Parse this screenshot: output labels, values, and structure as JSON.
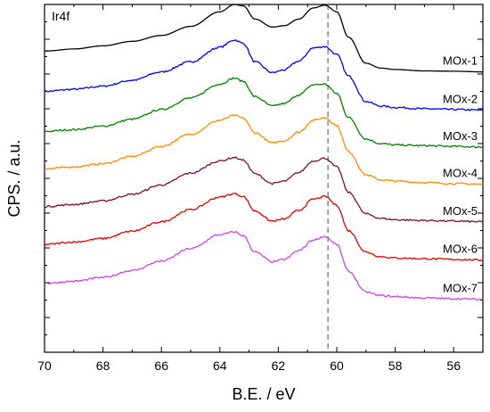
{
  "chart_data": {
    "type": "line",
    "title": "",
    "annotation": "Ir4f",
    "xlabel": "B.E. / eV",
    "ylabel": "CPS. / a.u.",
    "xlim": [
      70,
      55
    ],
    "x_reversed": true,
    "ylim": [
      0,
      100
    ],
    "y_tick_labels": false,
    "x_ticks": [
      70,
      68,
      66,
      64,
      62,
      60,
      58,
      56
    ],
    "reference_line": {
      "x": 60.3,
      "style": "dashed",
      "color": "#888888"
    },
    "grid": false,
    "legend": "inline-right",
    "x": [
      70,
      69,
      68,
      67,
      66,
      65,
      64,
      63.5,
      63.2,
      62.8,
      62.2,
      61.8,
      61.3,
      60.8,
      60.4,
      60.0,
      59.6,
      59.0,
      58.5,
      58,
      57,
      56,
      55
    ],
    "series": [
      {
        "name": "MOx-1",
        "color": "#000000",
        "values": [
          86.6,
          87.2,
          88.1,
          89.4,
          91.1,
          93.7,
          97.9,
          100.0,
          99.6,
          95.8,
          93.5,
          93.9,
          95.8,
          99.0,
          99.8,
          97.9,
          90.6,
          83.1,
          81.7,
          81.3,
          80.9,
          80.8,
          80.6
        ]
      },
      {
        "name": "MOx-2",
        "color": "#0000ee",
        "values": [
          75.0,
          75.6,
          76.5,
          78.2,
          80.6,
          83.5,
          87.7,
          89.8,
          88.8,
          83.5,
          80.4,
          81.2,
          83.7,
          87.5,
          87.9,
          85.6,
          79.4,
          72.1,
          70.8,
          70.4,
          70.0,
          69.8,
          69.6
        ]
      },
      {
        "name": "MOx-3",
        "color": "#008000",
        "values": [
          63.5,
          64.0,
          65.0,
          67.0,
          69.8,
          73.1,
          77.1,
          78.8,
          77.9,
          73.5,
          70.8,
          71.5,
          74.0,
          76.9,
          77.1,
          74.4,
          67.5,
          61.3,
          60.0,
          59.6,
          59.4,
          59.2,
          59.0
        ]
      },
      {
        "name": "MOx-4",
        "color": "#ff8c00",
        "values": [
          52.7,
          53.3,
          54.2,
          56.3,
          59.2,
          62.7,
          66.7,
          68.1,
          67.3,
          63.1,
          60.2,
          60.8,
          63.3,
          66.7,
          67.5,
          65.2,
          57.7,
          51.0,
          49.6,
          49.2,
          48.8,
          48.5,
          48.3
        ]
      },
      {
        "name": "MOx-5",
        "color": "#7b1030",
        "values": [
          41.9,
          42.5,
          43.5,
          45.4,
          48.1,
          51.5,
          55.0,
          56.0,
          55.2,
          51.3,
          48.5,
          49.2,
          51.7,
          55.0,
          55.8,
          53.3,
          46.0,
          39.8,
          38.5,
          38.1,
          37.9,
          37.7,
          37.5
        ]
      },
      {
        "name": "MOx-6",
        "color": "#dd0000",
        "values": [
          31.0,
          31.7,
          32.7,
          34.8,
          37.5,
          41.0,
          44.6,
          45.6,
          44.8,
          40.6,
          37.7,
          38.3,
          40.8,
          44.0,
          44.8,
          42.3,
          35.0,
          28.8,
          27.5,
          27.1,
          26.9,
          26.7,
          26.5
        ]
      },
      {
        "name": "MOx-7",
        "color": "#cc44ee",
        "values": [
          19.8,
          20.4,
          21.5,
          23.5,
          26.2,
          29.8,
          33.8,
          34.6,
          33.5,
          28.8,
          26.0,
          26.7,
          29.2,
          32.3,
          33.3,
          31.0,
          23.3,
          17.3,
          16.3,
          16.0,
          15.6,
          15.4,
          15.2
        ]
      }
    ]
  }
}
